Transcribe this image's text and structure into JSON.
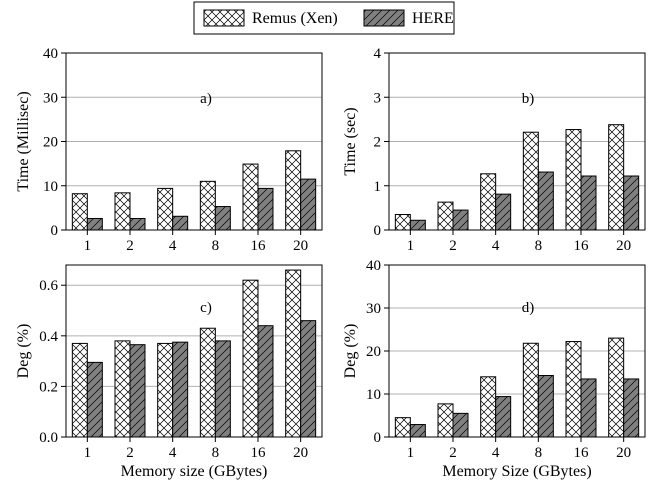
{
  "legend": {
    "items": [
      {
        "label": "Remus (Xen)",
        "pattern": "crosshatch",
        "color": "#ffffff"
      },
      {
        "label": "HERE",
        "pattern": "diagonal",
        "color": "#808080"
      }
    ]
  },
  "chart_data": [
    {
      "type": "bar",
      "panel_label": "a)",
      "categories": [
        "1",
        "2",
        "4",
        "8",
        "16",
        "20"
      ],
      "series": [
        {
          "name": "Remus (Xen)",
          "values": [
            8.2,
            8.4,
            9.4,
            11.0,
            14.9,
            17.9
          ]
        },
        {
          "name": "HERE",
          "values": [
            2.6,
            2.6,
            3.1,
            5.3,
            9.4,
            11.5
          ]
        }
      ],
      "ylabel": "Time (Millisec)",
      "xlabel": "",
      "ylim": [
        0,
        40
      ],
      "yticks": [
        0,
        10,
        20,
        30,
        40
      ],
      "ytick_labels": [
        "0",
        "10",
        "20",
        "30",
        "40"
      ],
      "grid": "horizontal"
    },
    {
      "type": "bar",
      "panel_label": "b)",
      "categories": [
        "1",
        "2",
        "4",
        "8",
        "16",
        "20"
      ],
      "series": [
        {
          "name": "Remus (Xen)",
          "values": [
            0.35,
            0.63,
            1.27,
            2.21,
            2.27,
            2.38
          ]
        },
        {
          "name": "HERE",
          "values": [
            0.22,
            0.45,
            0.81,
            1.31,
            1.22,
            1.22
          ]
        }
      ],
      "ylabel": "Time (sec)",
      "xlabel": "",
      "ylim": [
        0,
        4
      ],
      "yticks": [
        0,
        1,
        2,
        3,
        4
      ],
      "ytick_labels": [
        "0",
        "1",
        "2",
        "3",
        "4"
      ],
      "grid": "horizontal"
    },
    {
      "type": "bar",
      "panel_label": "c)",
      "categories": [
        "1",
        "2",
        "4",
        "8",
        "16",
        "20"
      ],
      "series": [
        {
          "name": "Remus (Xen)",
          "values": [
            0.37,
            0.38,
            0.37,
            0.43,
            0.62,
            0.66
          ]
        },
        {
          "name": "HERE",
          "values": [
            0.295,
            0.365,
            0.375,
            0.38,
            0.44,
            0.46
          ]
        }
      ],
      "ylabel": "Deg (%)",
      "xlabel": "Memory size (GBytes)",
      "ylim": [
        0,
        0.68
      ],
      "yticks": [
        0,
        0.2,
        0.4,
        0.6
      ],
      "ytick_labels": [
        "0.0",
        "0.2",
        "0.4",
        "0.6"
      ],
      "grid": "horizontal"
    },
    {
      "type": "bar",
      "panel_label": "d)",
      "categories": [
        "1",
        "2",
        "4",
        "8",
        "16",
        "20"
      ],
      "series": [
        {
          "name": "Remus (Xen)",
          "values": [
            4.5,
            7.7,
            14.0,
            21.8,
            22.2,
            23.0
          ]
        },
        {
          "name": "HERE",
          "values": [
            2.9,
            5.5,
            9.4,
            14.3,
            13.5,
            13.5
          ]
        }
      ],
      "ylabel": "Deg (%)",
      "xlabel": "Memory Size (GBytes)",
      "ylim": [
        0,
        40
      ],
      "yticks": [
        0,
        10,
        20,
        30,
        40
      ],
      "ytick_labels": [
        "0",
        "10",
        "20",
        "30",
        "40"
      ],
      "grid": "horizontal"
    }
  ]
}
